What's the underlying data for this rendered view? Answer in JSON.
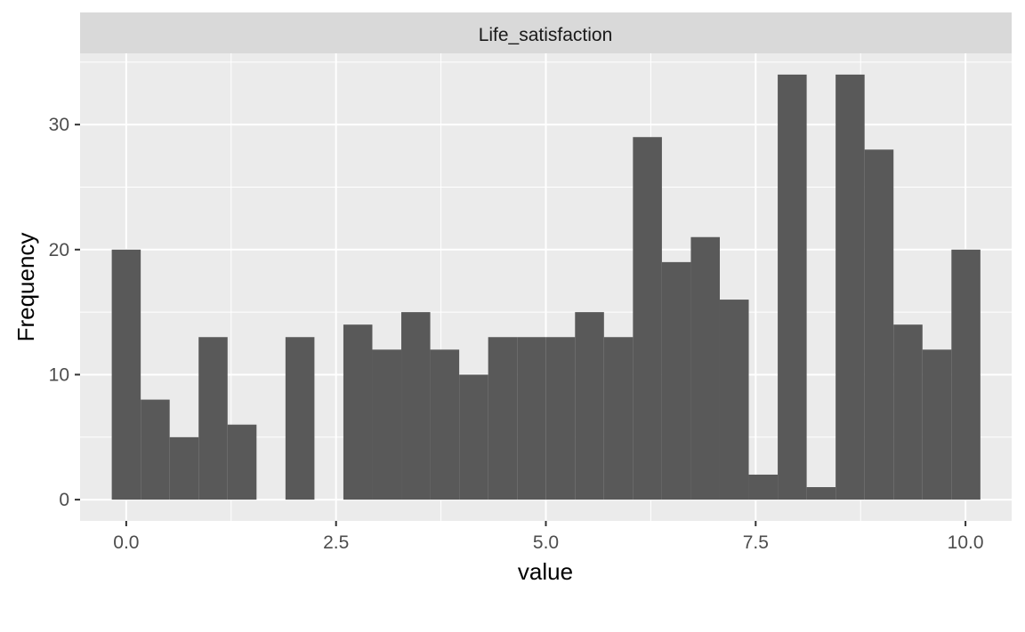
{
  "chart_data": {
    "type": "bar",
    "subtype": "histogram",
    "facet_label": "Life_satisfaction",
    "xlabel": "value",
    "ylabel": "Frequency",
    "xlim": [
      -0.55,
      10.55
    ],
    "ylim": [
      -1.7,
      35.7
    ],
    "bin_width": 0.345,
    "x_ticks": [
      0.0,
      2.5,
      5.0,
      7.5,
      10.0
    ],
    "x_tick_labels": [
      "0.0",
      "2.5",
      "5.0",
      "7.5",
      "10.0"
    ],
    "y_ticks": [
      0,
      10,
      20,
      30
    ],
    "y_tick_labels": [
      "0",
      "10",
      "20",
      "30"
    ],
    "grid": true,
    "bins": [
      {
        "x": 0.0,
        "count": 20
      },
      {
        "x": 0.345,
        "count": 8
      },
      {
        "x": 0.69,
        "count": 5
      },
      {
        "x": 1.035,
        "count": 13
      },
      {
        "x": 1.38,
        "count": 6
      },
      {
        "x": 1.725,
        "count": 0
      },
      {
        "x": 2.07,
        "count": 13
      },
      {
        "x": 2.415,
        "count": 0
      },
      {
        "x": 2.76,
        "count": 14
      },
      {
        "x": 3.105,
        "count": 12
      },
      {
        "x": 3.45,
        "count": 15
      },
      {
        "x": 3.795,
        "count": 12
      },
      {
        "x": 4.14,
        "count": 10
      },
      {
        "x": 4.485,
        "count": 13
      },
      {
        "x": 4.83,
        "count": 13
      },
      {
        "x": 5.175,
        "count": 13
      },
      {
        "x": 5.52,
        "count": 15
      },
      {
        "x": 5.865,
        "count": 13
      },
      {
        "x": 6.21,
        "count": 29
      },
      {
        "x": 6.555,
        "count": 19
      },
      {
        "x": 6.9,
        "count": 21
      },
      {
        "x": 7.245,
        "count": 16
      },
      {
        "x": 7.59,
        "count": 2
      },
      {
        "x": 7.935,
        "count": 34
      },
      {
        "x": 8.28,
        "count": 1
      },
      {
        "x": 8.625,
        "count": 34
      },
      {
        "x": 8.97,
        "count": 28
      },
      {
        "x": 9.315,
        "count": 14
      },
      {
        "x": 9.66,
        "count": 12
      },
      {
        "x": 10.005,
        "count": 20
      }
    ],
    "colors": {
      "bar": "#595959",
      "panel": "#ebebeb",
      "grid_major": "#ffffff",
      "strip": "#d9d9d9"
    }
  }
}
